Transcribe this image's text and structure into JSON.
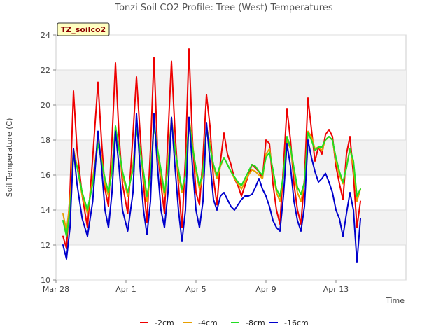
{
  "chart_data": {
    "type": "line",
    "title": "Tonzi Soil CO2 Profile: Tree (West) Temperatures",
    "xlabel": "Time",
    "ylabel": "Soil Temperature (C)",
    "badge": "TZ_soilco2",
    "ylim": [
      10,
      24
    ],
    "yticks": [
      10,
      12,
      14,
      16,
      18,
      20,
      22,
      24
    ],
    "xlim": [
      0,
      20
    ],
    "xticks": [
      {
        "x": 0,
        "label": "Mar 28"
      },
      {
        "x": 4,
        "label": "Apr 1"
      },
      {
        "x": 8,
        "label": "Apr 5"
      },
      {
        "x": 12,
        "label": "Apr 9"
      },
      {
        "x": 16,
        "label": "Apr 13"
      }
    ],
    "grid": true,
    "legend_position": "bottom",
    "series": [
      {
        "name": "-2cm",
        "color": "#ee0000",
        "x": [
          0.4,
          0.6,
          0.8,
          1.0,
          1.2,
          1.5,
          1.8,
          2.1,
          2.4,
          2.6,
          2.8,
          3.0,
          3.2,
          3.4,
          3.6,
          3.8,
          4.1,
          4.4,
          4.6,
          4.8,
          5.0,
          5.2,
          5.4,
          5.6,
          5.8,
          6.0,
          6.2,
          6.4,
          6.6,
          6.8,
          7.0,
          7.2,
          7.4,
          7.6,
          7.8,
          8.0,
          8.2,
          8.4,
          8.6,
          8.8,
          9.0,
          9.2,
          9.4,
          9.6,
          9.8,
          10.0,
          10.2,
          10.4,
          10.6,
          10.8,
          11.0,
          11.2,
          11.4,
          11.6,
          11.8,
          12.0,
          12.2,
          12.4,
          12.6,
          12.8,
          13.0,
          13.2,
          13.4,
          13.6,
          13.8,
          14.0,
          14.2,
          14.4,
          14.6,
          14.8,
          15.0,
          15.2,
          15.4,
          15.6,
          15.8,
          16.0,
          16.2,
          16.4,
          16.6,
          16.8,
          17.0,
          17.2,
          17.4
        ],
        "values": [
          12.5,
          11.8,
          15.0,
          20.8,
          17.5,
          14.8,
          13.0,
          17.0,
          21.3,
          18.0,
          15.2,
          14.2,
          18.0,
          22.4,
          18.3,
          15.5,
          13.8,
          18.3,
          21.6,
          18.5,
          15.5,
          13.3,
          17.5,
          22.7,
          17.5,
          15.5,
          13.8,
          18.2,
          22.5,
          18.5,
          15.4,
          13.0,
          17.0,
          23.2,
          18.0,
          15.0,
          14.3,
          17.0,
          20.6,
          18.8,
          15.8,
          14.3,
          16.8,
          18.4,
          17.2,
          16.6,
          15.8,
          15.4,
          14.8,
          15.4,
          16.0,
          16.6,
          16.4,
          16.2,
          15.8,
          18.0,
          17.8,
          15.5,
          14.0,
          13.2,
          16.5,
          19.8,
          18.0,
          15.5,
          14.0,
          13.2,
          15.8,
          20.4,
          18.6,
          16.8,
          17.6,
          17.2,
          18.3,
          18.6,
          18.2,
          16.5,
          15.5,
          14.6,
          17.2,
          18.2,
          16.0,
          13.0,
          14.5
        ]
      },
      {
        "name": "-4cm",
        "color": "#e8a000",
        "x": [
          0.4,
          0.6,
          0.8,
          1.0,
          1.2,
          1.5,
          1.8,
          2.1,
          2.4,
          2.6,
          2.8,
          3.0,
          3.2,
          3.4,
          3.6,
          3.8,
          4.1,
          4.4,
          4.6,
          4.8,
          5.0,
          5.2,
          5.4,
          5.6,
          5.8,
          6.0,
          6.2,
          6.4,
          6.6,
          6.8,
          7.0,
          7.2,
          7.4,
          7.6,
          7.8,
          8.0,
          8.2,
          8.4,
          8.6,
          8.8,
          9.0,
          9.2,
          9.4,
          9.6,
          9.8,
          10.0,
          10.2,
          10.4,
          10.6,
          10.8,
          11.0,
          11.2,
          11.4,
          11.6,
          11.8,
          12.0,
          12.2,
          12.4,
          12.6,
          12.8,
          13.0,
          13.2,
          13.4,
          13.6,
          13.8,
          14.0,
          14.2,
          14.4,
          14.6,
          14.8,
          15.0,
          15.2,
          15.4,
          15.6,
          15.8,
          16.0,
          16.2,
          16.4,
          16.6,
          16.8,
          17.0,
          17.2,
          17.4
        ],
        "values": [
          13.8,
          12.8,
          14.5,
          17.5,
          16.5,
          14.8,
          13.8,
          15.8,
          18.0,
          17.0,
          15.5,
          14.8,
          16.5,
          18.5,
          17.5,
          16.0,
          14.8,
          16.5,
          18.8,
          17.5,
          16.0,
          14.5,
          16.0,
          19.0,
          17.5,
          16.0,
          14.8,
          16.5,
          19.3,
          17.5,
          16.0,
          15.0,
          16.0,
          19.3,
          17.8,
          16.2,
          15.2,
          16.0,
          18.8,
          17.8,
          16.5,
          15.8,
          16.5,
          17.0,
          16.6,
          16.2,
          15.8,
          15.5,
          15.2,
          15.6,
          16.0,
          16.3,
          16.2,
          16.0,
          15.8,
          17.2,
          17.5,
          16.2,
          15.0,
          14.5,
          16.0,
          18.0,
          17.5,
          16.2,
          15.0,
          14.5,
          15.5,
          18.5,
          18.2,
          17.5,
          17.6,
          17.4,
          18.0,
          18.2,
          18.0,
          16.8,
          16.0,
          15.5,
          16.5,
          17.5,
          16.5,
          14.5,
          15.2
        ]
      },
      {
        "name": "-8cm",
        "color": "#22dd22",
        "x": [
          0.4,
          0.6,
          0.8,
          1.0,
          1.2,
          1.5,
          1.8,
          2.1,
          2.4,
          2.6,
          2.8,
          3.0,
          3.2,
          3.4,
          3.6,
          3.8,
          4.1,
          4.4,
          4.6,
          4.8,
          5.0,
          5.2,
          5.4,
          5.6,
          5.8,
          6.0,
          6.2,
          6.4,
          6.6,
          6.8,
          7.0,
          7.2,
          7.4,
          7.6,
          7.8,
          8.0,
          8.2,
          8.4,
          8.6,
          8.8,
          9.0,
          9.2,
          9.4,
          9.6,
          9.8,
          10.0,
          10.2,
          10.4,
          10.6,
          10.8,
          11.0,
          11.2,
          11.4,
          11.6,
          11.8,
          12.0,
          12.2,
          12.4,
          12.6,
          12.8,
          13.0,
          13.2,
          13.4,
          13.6,
          13.8,
          14.0,
          14.2,
          14.4,
          14.6,
          14.8,
          15.0,
          15.2,
          15.4,
          15.6,
          15.8,
          16.0,
          16.2,
          16.4,
          16.6,
          16.8,
          17.0,
          17.2,
          17.4
        ],
        "values": [
          13.4,
          12.5,
          14.0,
          17.0,
          16.5,
          15.0,
          14.0,
          15.5,
          17.8,
          16.8,
          15.8,
          15.0,
          16.2,
          18.8,
          17.5,
          16.2,
          15.0,
          16.3,
          18.6,
          17.5,
          16.2,
          14.8,
          16.0,
          18.8,
          17.5,
          16.3,
          15.0,
          16.3,
          19.0,
          17.5,
          16.3,
          15.2,
          16.0,
          19.2,
          17.6,
          16.4,
          15.4,
          16.2,
          18.6,
          17.6,
          16.6,
          16.0,
          16.6,
          17.0,
          16.6,
          16.2,
          15.9,
          15.6,
          15.4,
          15.8,
          16.2,
          16.6,
          16.5,
          16.2,
          16.0,
          17.0,
          17.3,
          16.3,
          15.2,
          14.8,
          16.0,
          18.2,
          17.6,
          16.4,
          15.3,
          14.9,
          15.6,
          18.4,
          18.0,
          17.4,
          17.6,
          17.6,
          18.0,
          18.2,
          18.0,
          17.0,
          16.2,
          15.6,
          16.4,
          17.5,
          16.8,
          14.8,
          15.2
        ]
      },
      {
        "name": "-16cm",
        "color": "#0000cc",
        "x": [
          0.4,
          0.6,
          0.8,
          1.0,
          1.2,
          1.5,
          1.8,
          2.1,
          2.4,
          2.6,
          2.8,
          3.0,
          3.2,
          3.4,
          3.6,
          3.8,
          4.1,
          4.4,
          4.6,
          4.8,
          5.0,
          5.2,
          5.4,
          5.6,
          5.8,
          6.0,
          6.2,
          6.4,
          6.6,
          6.8,
          7.0,
          7.2,
          7.4,
          7.6,
          7.8,
          8.0,
          8.2,
          8.4,
          8.6,
          8.8,
          9.0,
          9.2,
          9.4,
          9.6,
          9.8,
          10.0,
          10.2,
          10.4,
          10.6,
          10.8,
          11.0,
          11.2,
          11.4,
          11.6,
          11.8,
          12.0,
          12.2,
          12.4,
          12.6,
          12.8,
          13.0,
          13.2,
          13.4,
          13.6,
          13.8,
          14.0,
          14.2,
          14.4,
          14.6,
          14.8,
          15.0,
          15.2,
          15.4,
          15.6,
          15.8,
          16.0,
          16.2,
          16.4,
          16.6,
          16.8,
          17.0,
          17.2,
          17.4
        ],
        "values": [
          12.0,
          11.2,
          13.0,
          17.5,
          15.5,
          13.5,
          12.5,
          14.5,
          18.5,
          16.5,
          14.0,
          13.0,
          15.0,
          18.5,
          16.5,
          14.0,
          12.8,
          15.0,
          19.5,
          16.5,
          14.0,
          12.6,
          14.5,
          19.5,
          16.5,
          14.0,
          13.0,
          15.0,
          19.3,
          16.5,
          14.0,
          12.2,
          14.0,
          19.3,
          16.5,
          14.0,
          13.0,
          14.5,
          19.0,
          16.8,
          14.6,
          14.0,
          14.8,
          15.0,
          14.6,
          14.2,
          14.0,
          14.3,
          14.6,
          14.8,
          14.8,
          14.9,
          15.3,
          15.8,
          15.2,
          14.8,
          14.2,
          13.4,
          13.0,
          12.8,
          14.8,
          17.8,
          16.5,
          14.5,
          13.4,
          12.8,
          14.2,
          18.0,
          17.0,
          16.2,
          15.6,
          15.8,
          16.1,
          15.6,
          15.0,
          14.0,
          13.5,
          12.5,
          13.8,
          15.0,
          14.0,
          11.0,
          13.5
        ]
      }
    ]
  }
}
